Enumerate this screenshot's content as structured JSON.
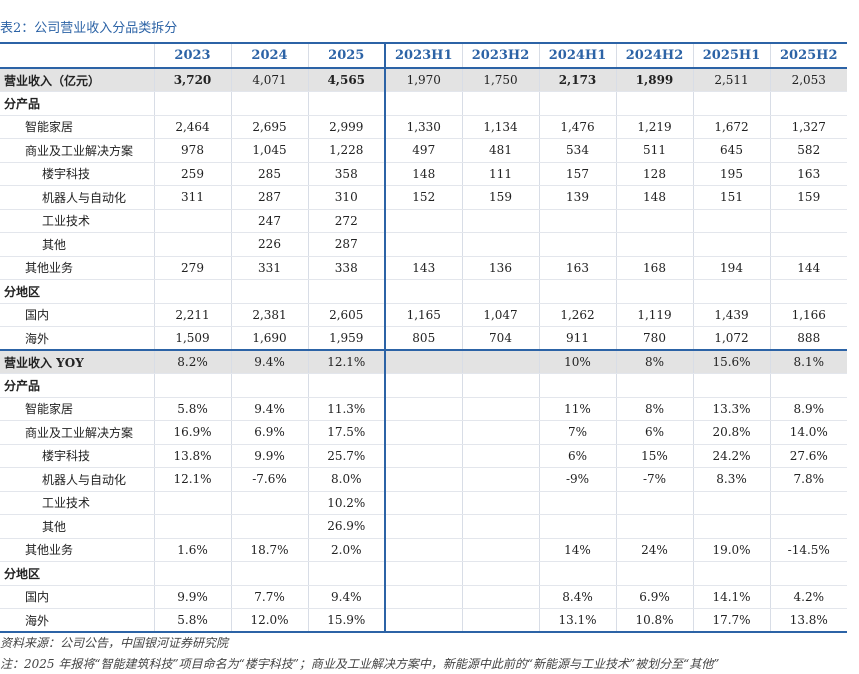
{
  "title": "表2：公司营业收入分品类拆分",
  "columns": [
    "",
    "2023",
    "2024",
    "2025",
    "2023H1",
    "2023H2",
    "2024H1",
    "2024H2",
    "2025H1",
    "2025H2"
  ],
  "rows": [
    {
      "label": "营业收入（亿元）",
      "type": "highlight",
      "indent": 0,
      "cells": [
        "3,720",
        "4,071",
        "4,565",
        "1,970",
        "1,750",
        "2,173",
        "1,899",
        "2,511",
        "2,053"
      ]
    },
    {
      "label": "分产品",
      "type": "section",
      "indent": 0,
      "cells": [
        "",
        "",
        "",
        "",
        "",
        "",
        "",
        "",
        ""
      ]
    },
    {
      "label": "智能家居",
      "type": "data",
      "indent": 1,
      "cells": [
        "2,464",
        "2,695",
        "2,999",
        "1,330",
        "1,134",
        "1,476",
        "1,219",
        "1,672",
        "1,327"
      ]
    },
    {
      "label": "商业及工业解决方案",
      "type": "data",
      "indent": 1,
      "cells": [
        "978",
        "1,045",
        "1,228",
        "497",
        "481",
        "534",
        "511",
        "645",
        "582"
      ]
    },
    {
      "label": "楼宇科技",
      "type": "data",
      "indent": 2,
      "cells": [
        "259",
        "285",
        "358",
        "148",
        "111",
        "157",
        "128",
        "195",
        "163"
      ]
    },
    {
      "label": "机器人与自动化",
      "type": "data",
      "indent": 2,
      "cells": [
        "311",
        "287",
        "310",
        "152",
        "159",
        "139",
        "148",
        "151",
        "159"
      ]
    },
    {
      "label": "工业技术",
      "type": "data",
      "indent": 2,
      "cells": [
        "",
        "247",
        "272",
        "",
        "",
        "",
        "",
        "",
        ""
      ]
    },
    {
      "label": "其他",
      "type": "data",
      "indent": 2,
      "cells": [
        "",
        "226",
        "287",
        "",
        "",
        "",
        "",
        "",
        ""
      ]
    },
    {
      "label": "其他业务",
      "type": "data",
      "indent": 1,
      "cells": [
        "279",
        "331",
        "338",
        "143",
        "136",
        "163",
        "168",
        "194",
        "144"
      ]
    },
    {
      "label": "分地区",
      "type": "section",
      "indent": 0,
      "cells": [
        "",
        "",
        "",
        "",
        "",
        "",
        "",
        "",
        ""
      ]
    },
    {
      "label": "国内",
      "type": "data",
      "indent": 1,
      "cells": [
        "2,211",
        "2,381",
        "2,605",
        "1,165",
        "1,047",
        "1,262",
        "1,119",
        "1,439",
        "1,166"
      ]
    },
    {
      "label": "海外",
      "type": "data",
      "indent": 1,
      "cells": [
        "1,509",
        "1,690",
        "1,959",
        "805",
        "704",
        "911",
        "780",
        "1,072",
        "888"
      ]
    },
    {
      "label": "营业收入 YOY",
      "type": "highlight-yoy",
      "indent": 0,
      "cells": [
        "8.2%",
        "9.4%",
        "12.1%",
        "",
        "",
        "10%",
        "8%",
        "15.6%",
        "8.1%"
      ]
    },
    {
      "label": "分产品",
      "type": "section",
      "indent": 0,
      "cells": [
        "",
        "",
        "",
        "",
        "",
        "",
        "",
        "",
        ""
      ]
    },
    {
      "label": "智能家居",
      "type": "data",
      "indent": 1,
      "cells": [
        "5.8%",
        "9.4%",
        "11.3%",
        "",
        "",
        "11%",
        "8%",
        "13.3%",
        "8.9%"
      ]
    },
    {
      "label": "商业及工业解决方案",
      "type": "data",
      "indent": 1,
      "cells": [
        "16.9%",
        "6.9%",
        "17.5%",
        "",
        "",
        "7%",
        "6%",
        "20.8%",
        "14.0%"
      ]
    },
    {
      "label": "楼宇科技",
      "type": "data",
      "indent": 2,
      "cells": [
        "13.8%",
        "9.9%",
        "25.7%",
        "",
        "",
        "6%",
        "15%",
        "24.2%",
        "27.6%"
      ]
    },
    {
      "label": "机器人与自动化",
      "type": "data",
      "indent": 2,
      "cells": [
        "12.1%",
        "-7.6%",
        "8.0%",
        "",
        "",
        "-9%",
        "-7%",
        "8.3%",
        "7.8%"
      ]
    },
    {
      "label": "工业技术",
      "type": "data",
      "indent": 2,
      "cells": [
        "",
        "",
        "10.2%",
        "",
        "",
        "",
        "",
        "",
        ""
      ]
    },
    {
      "label": "其他",
      "type": "data",
      "indent": 2,
      "cells": [
        "",
        "",
        "26.9%",
        "",
        "",
        "",
        "",
        "",
        ""
      ]
    },
    {
      "label": "其他业务",
      "type": "data",
      "indent": 1,
      "cells": [
        "1.6%",
        "18.7%",
        "2.0%",
        "",
        "",
        "14%",
        "24%",
        "19.0%",
        "-14.5%"
      ]
    },
    {
      "label": "分地区",
      "type": "section",
      "indent": 0,
      "cells": [
        "",
        "",
        "",
        "",
        "",
        "",
        "",
        "",
        ""
      ]
    },
    {
      "label": "国内",
      "type": "data",
      "indent": 1,
      "cells": [
        "9.9%",
        "7.7%",
        "9.4%",
        "",
        "",
        "8.4%",
        "6.9%",
        "14.1%",
        "4.2%"
      ]
    },
    {
      "label": "海外",
      "type": "data",
      "indent": 1,
      "cells": [
        "5.8%",
        "12.0%",
        "15.9%",
        "",
        "",
        "13.1%",
        "10.8%",
        "17.7%",
        "13.8%"
      ]
    }
  ],
  "bold_cells_first_row": [
    "3,720",
    "4,565",
    "2,173",
    "1,899"
  ],
  "source": "资料来源：公司公告，中国银河证券研究院",
  "note": "注：2025 年报将“智能建筑科技”项目命名为“楼宇科技”；商业及工业解决方案中，新能源中此前的“新能源与工业技术”被划分至“其他”"
}
